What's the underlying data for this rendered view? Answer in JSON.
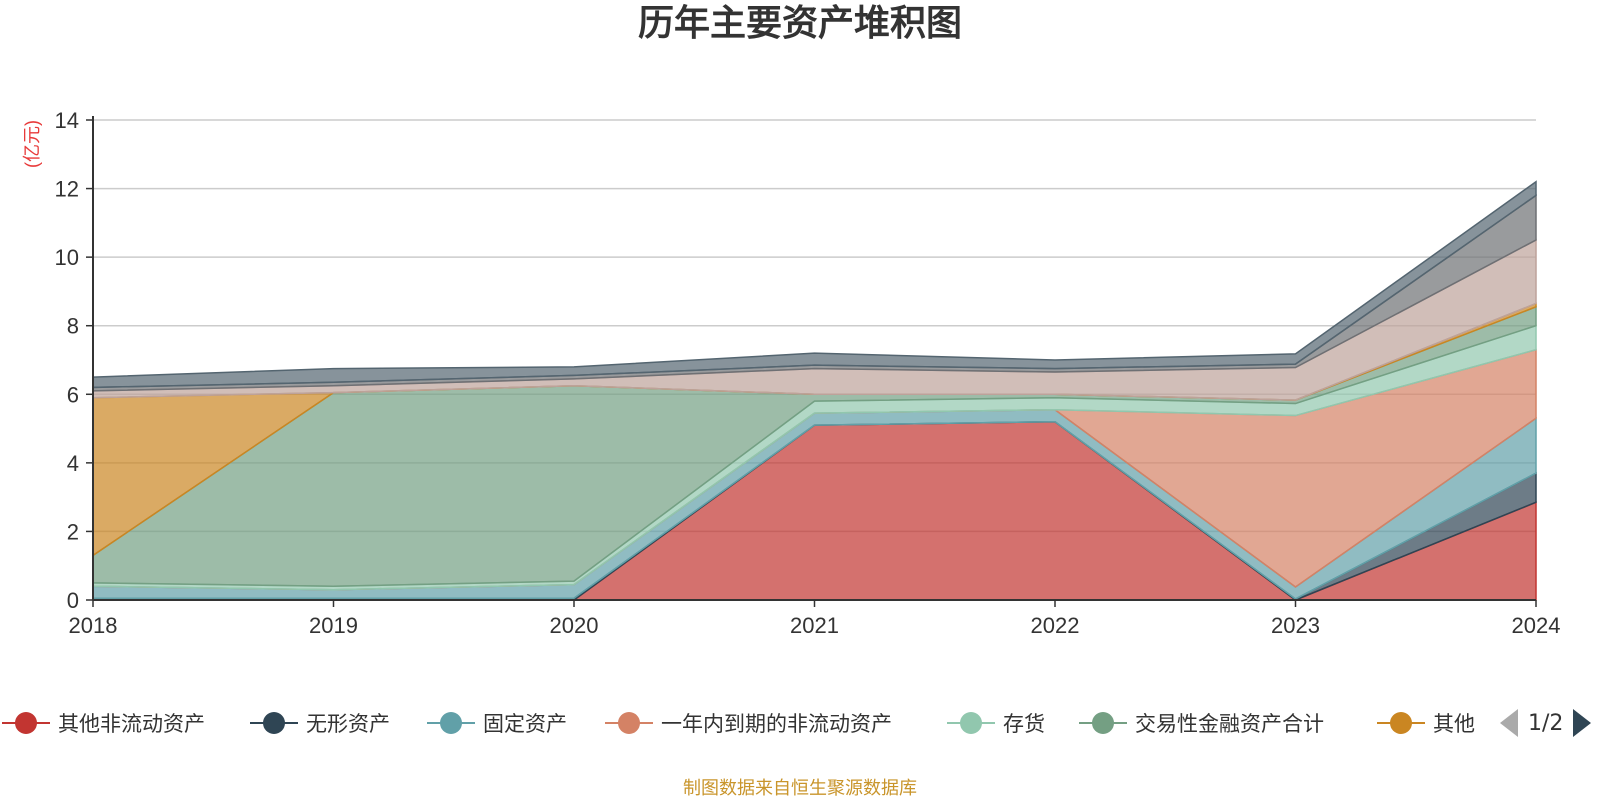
{
  "title": "历年主要资产堆积图",
  "source_note": "制图数据来自恒生聚源数据库",
  "legend_pager": "1/2",
  "chart_data": {
    "type": "area",
    "stacked": true,
    "title": "历年主要资产堆积图",
    "ylabel": "(亿元)",
    "xlabel": "",
    "x": [
      "2018",
      "2019",
      "2020",
      "2021",
      "2022",
      "2023",
      "2024"
    ],
    "ylim": [
      0,
      14
    ],
    "yticks": [
      0,
      2,
      4,
      6,
      8,
      10,
      12,
      14
    ],
    "grid": true,
    "legend_position": "bottom",
    "series": [
      {
        "name": "其他非流动资产",
        "color": "#c23531",
        "values": [
          0,
          0,
          0,
          5.1,
          5.2,
          0,
          2.85
        ],
        "in_legend": true
      },
      {
        "name": "无形资产",
        "color": "#2f4554",
        "values": [
          0.05,
          0.05,
          0.05,
          0,
          0,
          0.03,
          0.85
        ],
        "in_legend": true
      },
      {
        "name": "固定资产",
        "color": "#61a0a8",
        "values": [
          0.35,
          0.25,
          0.4,
          0.35,
          0.35,
          0.35,
          1.6
        ],
        "in_legend": true
      },
      {
        "name": "一年内到期的非流动资产",
        "color": "#d48265",
        "values": [
          0,
          0,
          0,
          0,
          0,
          5.0,
          2.0
        ],
        "in_legend": true
      },
      {
        "name": "存货",
        "color": "#91c7ae",
        "values": [
          0.1,
          0.1,
          0.1,
          0.35,
          0.35,
          0.35,
          0.7
        ],
        "in_legend": true
      },
      {
        "name": "交易性金融资产合计",
        "color": "#749f83",
        "values": [
          0.8,
          5.65,
          5.7,
          0.2,
          0.1,
          0.1,
          0.55
        ],
        "in_legend": true
      },
      {
        "name": "其他",
        "color": "#ca8622",
        "values": [
          4.6,
          0,
          0,
          0,
          0,
          0,
          0.1
        ],
        "in_legend": true
      },
      {
        "name": "",
        "color": "#bda29a",
        "values": [
          0.2,
          0.2,
          0.2,
          0.75,
          0.65,
          0.95,
          1.85
        ],
        "in_legend": false
      },
      {
        "name": "",
        "color": "#6e7074",
        "values": [
          0.1,
          0.1,
          0.1,
          0.1,
          0.1,
          0.1,
          1.3
        ],
        "in_legend": false
      },
      {
        "name": "",
        "color": "#546570",
        "values": [
          0.3,
          0.4,
          0.25,
          0.35,
          0.25,
          0.3,
          0.4
        ],
        "in_legend": false
      }
    ]
  }
}
